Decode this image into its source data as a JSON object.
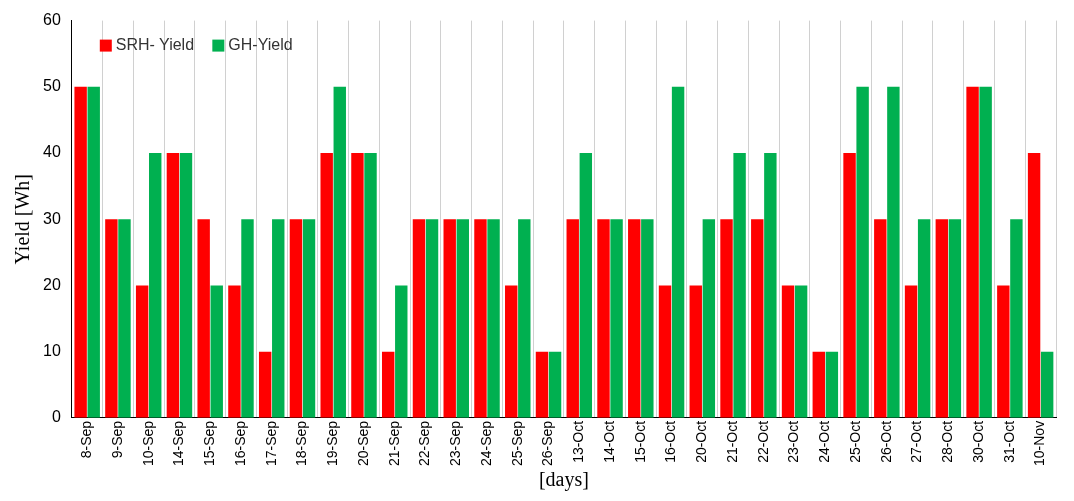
{
  "chart_data": {
    "type": "bar",
    "xlabel": "[days]",
    "ylabel": "Yield [Wh]",
    "categories": [
      "8-Sep",
      "9-Sep",
      "10-Sep",
      "14-Sep",
      "15-Sep",
      "16-Sep",
      "17-Sep",
      "18-Sep",
      "19-Sep",
      "20-Sep",
      "21-Sep",
      "22-Sep",
      "23-Sep",
      "24-Sep",
      "25-Sep",
      "26-Sep",
      "13-Oct",
      "14-Oct",
      "15-Oct",
      "16-Oct",
      "20-Oct",
      "21-Oct",
      "22-Oct",
      "23-Oct",
      "24-Oct",
      "25-Oct",
      "26-Oct",
      "27-Oct",
      "28-Oct",
      "30-Oct",
      "31-Oct",
      "10-Nov"
    ],
    "series": [
      {
        "name": "SRH- Yield",
        "color": "#ff0000",
        "values": [
          50,
          30,
          20,
          40,
          30,
          20,
          10,
          30,
          40,
          40,
          10,
          30,
          30,
          30,
          20,
          10,
          30,
          30,
          30,
          20,
          20,
          30,
          30,
          20,
          10,
          40,
          30,
          20,
          30,
          50,
          20,
          40
        ]
      },
      {
        "name": "GH-Yield",
        "color": "#00b050",
        "values": [
          50,
          30,
          40,
          40,
          20,
          30,
          30,
          30,
          50,
          40,
          20,
          30,
          30,
          30,
          30,
          10,
          40,
          30,
          30,
          50,
          30,
          40,
          40,
          20,
          10,
          50,
          50,
          30,
          30,
          50,
          30,
          10
        ]
      }
    ],
    "ylim": [
      0,
      60
    ],
    "yticks": [
      0,
      10,
      20,
      30,
      40,
      50,
      60
    ],
    "grid": "x",
    "legend": "top left"
  }
}
